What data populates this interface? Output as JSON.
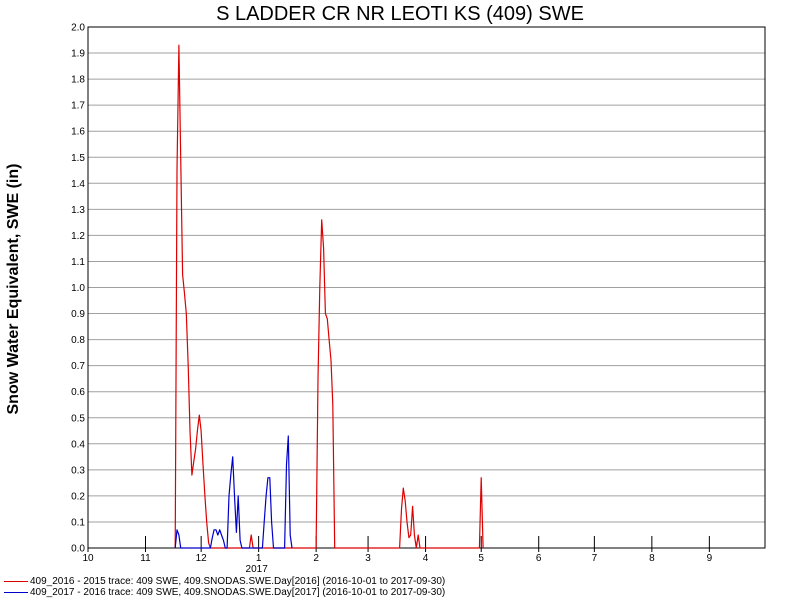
{
  "chart_data": {
    "type": "line",
    "title": "S LADDER CR NR LEOTI KS (409) SWE",
    "ylabel": "Snow Water Equivalent, SWE (in)",
    "xlabel": "",
    "ylim": [
      0,
      2.0
    ],
    "yticks": [
      0.0,
      0.1,
      0.2,
      0.3,
      0.4,
      0.5,
      0.6,
      0.7,
      0.8,
      0.9,
      1.0,
      1.1,
      1.2,
      1.3,
      1.4,
      1.5,
      1.6,
      1.7,
      1.8,
      1.9,
      2.0
    ],
    "xlim": [
      "2016-10-01",
      "2017-09-30"
    ],
    "xticks": [
      {
        "date": "2016-10-01",
        "label": "10"
      },
      {
        "date": "2016-11-01",
        "label": "11"
      },
      {
        "date": "2016-12-01",
        "label": "12"
      },
      {
        "date": "2017-01-01",
        "label": "1"
      },
      {
        "date": "2017-02-01",
        "label": "2"
      },
      {
        "date": "2017-03-01",
        "label": "3"
      },
      {
        "date": "2017-04-01",
        "label": "4"
      },
      {
        "date": "2017-05-01",
        "label": "5"
      },
      {
        "date": "2017-06-01",
        "label": "6"
      },
      {
        "date": "2017-07-01",
        "label": "7"
      },
      {
        "date": "2017-08-01",
        "label": "8"
      },
      {
        "date": "2017-09-01",
        "label": "9"
      }
    ],
    "year_label": {
      "date": "2017-01-01",
      "label": "2017"
    },
    "grid": true,
    "legend_position": "bottom-left",
    "series": [
      {
        "name": "409_2016 - 2015 trace: 409 SWE, 409.SNODAS.SWE.Day[2016] (2016-10-01 to 2017-09-30)",
        "color": "#dd0000",
        "points": [
          [
            "2016-11-17",
            0.0
          ],
          [
            "2016-11-18",
            1.45
          ],
          [
            "2016-11-19",
            1.93
          ],
          [
            "2016-11-20",
            1.5
          ],
          [
            "2016-11-21",
            1.05
          ],
          [
            "2016-11-22",
            0.98
          ],
          [
            "2016-11-23",
            0.9
          ],
          [
            "2016-11-24",
            0.7
          ],
          [
            "2016-11-25",
            0.45
          ],
          [
            "2016-11-26",
            0.28
          ],
          [
            "2016-11-27",
            0.33
          ],
          [
            "2016-11-28",
            0.38
          ],
          [
            "2016-11-29",
            0.45
          ],
          [
            "2016-11-30",
            0.51
          ],
          [
            "2016-12-01",
            0.45
          ],
          [
            "2016-12-02",
            0.32
          ],
          [
            "2016-12-03",
            0.2
          ],
          [
            "2016-12-04",
            0.1
          ],
          [
            "2016-12-05",
            0.02
          ],
          [
            "2016-12-06",
            0.0
          ],
          [
            "2016-12-27",
            0.0
          ],
          [
            "2016-12-28",
            0.05
          ],
          [
            "2016-12-29",
            0.0
          ],
          [
            "2017-02-01",
            0.0
          ],
          [
            "2017-02-02",
            0.65
          ],
          [
            "2017-02-03",
            1.0
          ],
          [
            "2017-02-04",
            1.26
          ],
          [
            "2017-02-05",
            1.15
          ],
          [
            "2017-02-06",
            0.9
          ],
          [
            "2017-02-07",
            0.88
          ],
          [
            "2017-02-08",
            0.8
          ],
          [
            "2017-02-09",
            0.72
          ],
          [
            "2017-02-10",
            0.55
          ],
          [
            "2017-02-11",
            0.0
          ],
          [
            "2017-03-18",
            0.0
          ],
          [
            "2017-03-19",
            0.15
          ],
          [
            "2017-03-20",
            0.23
          ],
          [
            "2017-03-21",
            0.18
          ],
          [
            "2017-03-22",
            0.1
          ],
          [
            "2017-03-23",
            0.04
          ],
          [
            "2017-03-24",
            0.05
          ],
          [
            "2017-03-25",
            0.16
          ],
          [
            "2017-03-26",
            0.05
          ],
          [
            "2017-03-27",
            0.0
          ],
          [
            "2017-03-28",
            0.05
          ],
          [
            "2017-03-29",
            0.0
          ],
          [
            "2017-04-30",
            0.0
          ],
          [
            "2017-05-01",
            0.27
          ],
          [
            "2017-05-02",
            0.0
          ]
        ]
      },
      {
        "name": "409_2017 - 2016 trace: 409 SWE, 409.SNODAS.SWE.Day[2017] (2016-10-01 to 2017-09-30)",
        "color": "#0000cc",
        "points": [
          [
            "2016-11-17",
            0.0
          ],
          [
            "2016-11-18",
            0.07
          ],
          [
            "2016-11-19",
            0.05
          ],
          [
            "2016-11-20",
            0.0
          ],
          [
            "2016-12-06",
            0.0
          ],
          [
            "2016-12-07",
            0.04
          ],
          [
            "2016-12-08",
            0.07
          ],
          [
            "2016-12-09",
            0.07
          ],
          [
            "2016-12-10",
            0.05
          ],
          [
            "2016-12-11",
            0.07
          ],
          [
            "2016-12-12",
            0.05
          ],
          [
            "2016-12-13",
            0.03
          ],
          [
            "2016-12-14",
            0.0
          ],
          [
            "2016-12-15",
            0.0
          ],
          [
            "2016-12-16",
            0.2
          ],
          [
            "2016-12-17",
            0.28
          ],
          [
            "2016-12-18",
            0.35
          ],
          [
            "2016-12-19",
            0.2
          ],
          [
            "2016-12-20",
            0.06
          ],
          [
            "2016-12-21",
            0.2
          ],
          [
            "2016-12-22",
            0.03
          ],
          [
            "2016-12-23",
            0.0
          ],
          [
            "2017-01-03",
            0.0
          ],
          [
            "2017-01-04",
            0.1
          ],
          [
            "2017-01-05",
            0.2
          ],
          [
            "2017-01-06",
            0.27
          ],
          [
            "2017-01-07",
            0.27
          ],
          [
            "2017-01-08",
            0.1
          ],
          [
            "2017-01-09",
            0.0
          ],
          [
            "2017-01-15",
            0.0
          ],
          [
            "2017-01-16",
            0.32
          ],
          [
            "2017-01-17",
            0.43
          ],
          [
            "2017-01-18",
            0.05
          ],
          [
            "2017-01-19",
            0.0
          ]
        ]
      }
    ]
  },
  "legend": {
    "item_0": "409_2016 - 2015 trace: 409 SWE, 409.SNODAS.SWE.Day[2016] (2016-10-01 to 2017-09-30)",
    "item_1": "409_2017 - 2016 trace: 409 SWE, 409.SNODAS.SWE.Day[2017] (2016-10-01 to 2017-09-30)",
    "color_0": "#dd0000",
    "color_1": "#0000cc"
  }
}
